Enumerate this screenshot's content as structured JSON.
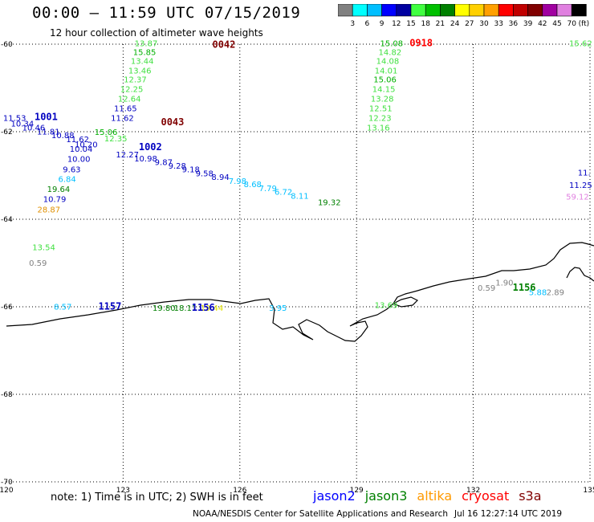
{
  "title": "00:00 – 11:59 UTC 07/15/2019",
  "subtitle": "12 hour collection of altimeter wave heights",
  "color_scale": {
    "unit": "(ft)",
    "bins": [
      {
        "label": "",
        "color": "#808080"
      },
      {
        "label": "3",
        "color": "#00ffff"
      },
      {
        "label": "6",
        "color": "#00bfff"
      },
      {
        "label": "9",
        "color": "#0000ff"
      },
      {
        "label": "12",
        "color": "#0000a0"
      },
      {
        "label": "15",
        "color": "#40ff40"
      },
      {
        "label": "18",
        "color": "#00c000"
      },
      {
        "label": "21",
        "color": "#008000"
      },
      {
        "label": "24",
        "color": "#ffff00"
      },
      {
        "label": "27",
        "color": "#ffd000"
      },
      {
        "label": "30",
        "color": "#ffa000"
      },
      {
        "label": "33",
        "color": "#ff0000"
      },
      {
        "label": "36",
        "color": "#c00000"
      },
      {
        "label": "39",
        "color": "#800000"
      },
      {
        "label": "42",
        "color": "#a000a0"
      },
      {
        "label": "45",
        "color": "#e080e0"
      },
      {
        "label": "70",
        "color": "#000000"
      }
    ]
  },
  "map": {
    "lon_ticks": [
      "120",
      "123",
      "126",
      "129",
      "132",
      "135"
    ],
    "lat_ticks": [
      "-60",
      "-62",
      "-64",
      "-66",
      "-68",
      "-70"
    ]
  },
  "observations": [
    {
      "text": "13.87",
      "color": "#40e040",
      "lon": 123.59,
      "lat": -60.05
    },
    {
      "text": "15.85",
      "color": "#00b000",
      "lon": 123.55,
      "lat": -60.25
    },
    {
      "text": "13.44",
      "color": "#40e040",
      "lon": 123.49,
      "lat": -60.45
    },
    {
      "text": "13.46",
      "color": "#40e040",
      "lon": 123.43,
      "lat": -60.67
    },
    {
      "text": "12.37",
      "color": "#40e040",
      "lon": 123.31,
      "lat": -60.87
    },
    {
      "text": "12.25",
      "color": "#40e040",
      "lon": 123.22,
      "lat": -61.09
    },
    {
      "text": "12.64",
      "color": "#40e040",
      "lon": 123.16,
      "lat": -61.31
    },
    {
      "text": "11.65",
      "color": "#0000c0",
      "lon": 123.06,
      "lat": -61.53
    },
    {
      "text": "11.62",
      "color": "#0000c0",
      "lon": 122.98,
      "lat": -61.75
    },
    {
      "text": "12.35",
      "color": "#40e040",
      "lon": 122.81,
      "lat": -62.22
    },
    {
      "text": "15.06",
      "color": "#00b000",
      "lon": 122.56,
      "lat": -62.07
    },
    {
      "text": "12.27",
      "color": "#0000c0",
      "lon": 123.11,
      "lat": -62.59
    },
    {
      "text": "10.98",
      "color": "#0000c0",
      "lon": 123.58,
      "lat": -62.68
    },
    {
      "text": "9.87",
      "color": "#0000c0",
      "lon": 124.04,
      "lat": -62.76
    },
    {
      "text": "9.28",
      "color": "#0000c0",
      "lon": 124.39,
      "lat": -62.84
    },
    {
      "text": "9.18",
      "color": "#0000c0",
      "lon": 124.74,
      "lat": -62.93
    },
    {
      "text": "9.58",
      "color": "#0000c0",
      "lon": 125.09,
      "lat": -63.02
    },
    {
      "text": "8.94",
      "color": "#0000c0",
      "lon": 125.5,
      "lat": -63.1
    },
    {
      "text": "7.98",
      "color": "#00bfff",
      "lon": 125.94,
      "lat": -63.19
    },
    {
      "text": "8.68",
      "color": "#00bfff",
      "lon": 126.33,
      "lat": -63.27
    },
    {
      "text": "7.79",
      "color": "#00bfff",
      "lon": 126.72,
      "lat": -63.36
    },
    {
      "text": "6.72",
      "color": "#00bfff",
      "lon": 127.12,
      "lat": -63.44
    },
    {
      "text": "8.11",
      "color": "#00bfff",
      "lon": 127.54,
      "lat": -63.53
    },
    {
      "text": "19.32",
      "color": "#008000",
      "lon": 128.3,
      "lat": -63.68
    },
    {
      "text": "11.53",
      "color": "#0000c0",
      "lon": 120.21,
      "lat": -61.75
    },
    {
      "text": "10.34",
      "color": "#0000c0",
      "lon": 120.41,
      "lat": -61.88
    },
    {
      "text": "10.46",
      "color": "#0000c0",
      "lon": 120.7,
      "lat": -61.97
    },
    {
      "text": "11.81",
      "color": "#0000c0",
      "lon": 121.08,
      "lat": -62.06
    },
    {
      "text": "10.88",
      "color": "#0000c0",
      "lon": 121.45,
      "lat": -62.15
    },
    {
      "text": "11.62",
      "color": "#0000c0",
      "lon": 121.83,
      "lat": -62.24
    },
    {
      "text": "10.20",
      "color": "#0000c0",
      "lon": 122.05,
      "lat": -62.36
    },
    {
      "text": "10.04",
      "color": "#0000c0",
      "lon": 121.92,
      "lat": -62.46
    },
    {
      "text": "10.00",
      "color": "#0000c0",
      "lon": 121.86,
      "lat": -62.69
    },
    {
      "text": "9.63",
      "color": "#0000c0",
      "lon": 121.68,
      "lat": -62.93
    },
    {
      "text": "6.84",
      "color": "#00bfff",
      "lon": 121.56,
      "lat": -63.15
    },
    {
      "text": "19.64",
      "color": "#008000",
      "lon": 121.34,
      "lat": -63.38
    },
    {
      "text": "10.79",
      "color": "#0000c0",
      "lon": 121.24,
      "lat": -63.61
    },
    {
      "text": "28.87",
      "color": "#e09000",
      "lon": 121.09,
      "lat": -63.84
    },
    {
      "text": "13.54",
      "color": "#40e040",
      "lon": 120.96,
      "lat": -64.71
    },
    {
      "text": "0.59",
      "color": "#808080",
      "lon": 120.81,
      "lat": -65.06
    },
    {
      "text": "8.57",
      "color": "#00bfff",
      "lon": 121.45,
      "lat": -66.06
    },
    {
      "text": "19.80",
      "color": "#008000",
      "lon": 124.05,
      "lat": -66.09
    },
    {
      "text": "18.11",
      "color": "#008000",
      "lon": 124.6,
      "lat": -66.09
    },
    {
      "text": "19.44",
      "color": "#e0e000",
      "lon": 125.28,
      "lat": -66.09
    },
    {
      "text": "3.95",
      "color": "#00bfff",
      "lon": 126.98,
      "lat": -66.09
    },
    {
      "text": "13.69",
      "color": "#40e040",
      "lon": 129.76,
      "lat": -66.03
    },
    {
      "text": "15.08",
      "color": "#00b000",
      "lon": 129.9,
      "lat": -60.05
    },
    {
      "text": "14.82",
      "color": "#40e040",
      "lon": 129.86,
      "lat": -60.25
    },
    {
      "text": "14.08",
      "color": "#40e040",
      "lon": 129.8,
      "lat": -60.45
    },
    {
      "text": "14.01",
      "color": "#40e040",
      "lon": 129.76,
      "lat": -60.67
    },
    {
      "text": "15.06",
      "color": "#00b000",
      "lon": 129.73,
      "lat": -60.87
    },
    {
      "text": "14.15",
      "color": "#40e040",
      "lon": 129.7,
      "lat": -61.09
    },
    {
      "text": "13.28",
      "color": "#40e040",
      "lon": 129.66,
      "lat": -61.31
    },
    {
      "text": "12.51",
      "color": "#40e040",
      "lon": 129.62,
      "lat": -61.53
    },
    {
      "text": "12.23",
      "color": "#40e040",
      "lon": 129.6,
      "lat": -61.75
    },
    {
      "text": "13.16",
      "color": "#40e040",
      "lon": 129.56,
      "lat": -61.97
    },
    {
      "text": "0.59",
      "color": "#808080",
      "lon": 132.34,
      "lat": -65.63
    },
    {
      "text": "1.90",
      "color": "#808080",
      "lon": 132.8,
      "lat": -65.51
    },
    {
      "text": "5.88",
      "color": "#00bfff",
      "lon": 133.66,
      "lat": -65.73
    },
    {
      "text": "2.89",
      "color": "#808080",
      "lon": 134.11,
      "lat": -65.73
    },
    {
      "text": "15.62",
      "color": "#40e040",
      "lon": 134.76,
      "lat": -60.05
    },
    {
      "text": "11.",
      "color": "#0000c0",
      "lon": 134.85,
      "lat": -63.0
    },
    {
      "text": "11.25",
      "color": "#0000c0",
      "lon": 134.76,
      "lat": -63.28
    },
    {
      "text": "59.12",
      "color": "#e080e0",
      "lon": 134.68,
      "lat": -63.55
    }
  ],
  "pass_labels": [
    {
      "text": "0042",
      "color": "#800000",
      "lon": 125.59,
      "lat": -60.08
    },
    {
      "text": "0043",
      "color": "#800000",
      "lon": 124.27,
      "lat": -61.85
    },
    {
      "text": "1001",
      "color": "#0000c0",
      "lon": 121.02,
      "lat": -61.73
    },
    {
      "text": "1002",
      "color": "#0000c0",
      "lon": 123.7,
      "lat": -62.42
    },
    {
      "text": "1157",
      "color": "#0000c0",
      "lon": 122.66,
      "lat": -66.06
    },
    {
      "text": "1156",
      "color": "#0000c0",
      "lon": 125.06,
      "lat": -66.09
    },
    {
      "text": "0918",
      "color": "#ff0000",
      "lon": 130.66,
      "lat": -60.05
    },
    {
      "text": "1156",
      "color": "#008000",
      "lon": 133.31,
      "lat": -65.63
    }
  ],
  "note": "note: 1) Time is in UTC; 2) SWH is in feet",
  "satellites": [
    {
      "name": "jason2",
      "color": "#0000ff"
    },
    {
      "name": "jason3",
      "color": "#008000"
    },
    {
      "name": "altika",
      "color": "#ff9900"
    },
    {
      "name": "cryosat",
      "color": "#ff0000"
    },
    {
      "name": "s3a",
      "color": "#800000"
    }
  ],
  "credit": "NOAA/NESDIS Center for Satellite Applications and Research",
  "timestamp": "Jul 16 12:27:14 UTC 2019"
}
